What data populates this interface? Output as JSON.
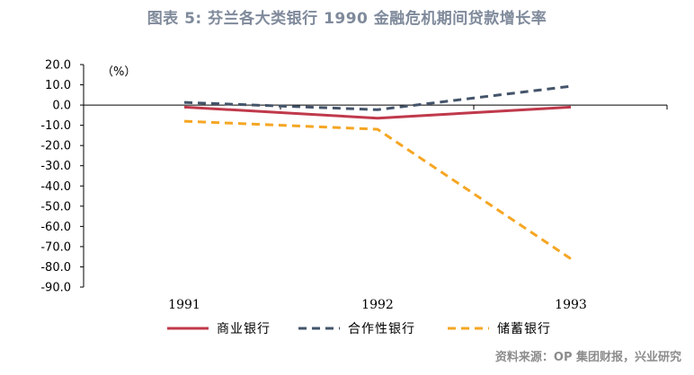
{
  "title": "图表 5: 芬兰各大类银行 1990 金融危机期间贷款增长率",
  "source": "资料来源：OP 集团财报，兴业研究",
  "chart_data": {
    "type": "line",
    "unit_label": "（%）",
    "categories": [
      "1991",
      "1992",
      "1993"
    ],
    "ylim": [
      -90,
      20
    ],
    "ytick_step": 10,
    "ytick_labels": [
      "20.0",
      "10.0",
      "0.0",
      "-10.0",
      "-20.0",
      "-30.0",
      "-40.0",
      "-50.0",
      "-60.0",
      "-70.0",
      "-80.0",
      "-90.0"
    ],
    "grid": false,
    "legend_position": "bottom",
    "series": [
      {
        "name": "商业银行",
        "values": [
          -1,
          -6.5,
          -1
        ],
        "color": "#c0394b",
        "dash": "solid"
      },
      {
        "name": "合作性银行",
        "values": [
          1.3,
          -2.3,
          9.3
        ],
        "color": "#44546a",
        "dash": "dashed"
      },
      {
        "name": "储蓄银行",
        "values": [
          -8,
          -12,
          -76
        ],
        "color": "#f5a623",
        "dash": "dashed"
      }
    ]
  }
}
